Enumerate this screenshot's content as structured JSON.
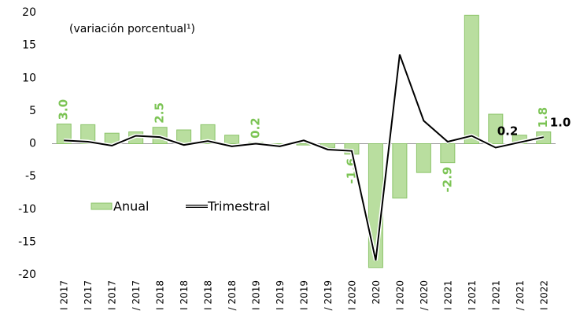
{
  "chart_data": {
    "type": "bar",
    "annotation": "(variación porcentual¹)",
    "categories": [
      "I 2017",
      "I 2017",
      "I 2017",
      "/ 2017",
      "I 2018",
      "I 2018",
      "I 2018",
      "/ 2018",
      "I 2019",
      "I 2019",
      "I 2019",
      "/ 2019",
      "I 2020",
      "2020",
      "I 2020",
      "/ 2020",
      "I 2021",
      "I 2021",
      "I 2021",
      "/ 2021",
      "I 2022"
    ],
    "series": [
      {
        "name": "Anual",
        "type": "bar",
        "color": "#b9de9f",
        "values": [
          3.0,
          2.9,
          1.6,
          1.8,
          2.5,
          2.1,
          2.9,
          1.3,
          0.2,
          0.0,
          -0.2,
          -0.6,
          -1.6,
          -18.9,
          -8.3,
          -4.4,
          -2.9,
          19.6,
          4.5,
          1.3,
          1.8
        ],
        "value_labels": [
          "3.0",
          null,
          null,
          null,
          "2.5",
          null,
          null,
          null,
          "0.2",
          null,
          null,
          null,
          "-1.6",
          null,
          null,
          null,
          "-2.9",
          null,
          null,
          null,
          "1.8"
        ]
      },
      {
        "name": "Trimestral",
        "type": "line",
        "color": "#000000",
        "values": [
          0.5,
          0.3,
          -0.3,
          1.2,
          1.0,
          -0.2,
          0.4,
          -0.4,
          0.0,
          -0.4,
          0.5,
          -0.9,
          -1.1,
          -17.8,
          13.6,
          3.5,
          0.3,
          1.2,
          -0.6,
          0.2,
          1.0
        ],
        "value_labels": [
          null,
          null,
          null,
          null,
          null,
          null,
          null,
          null,
          null,
          null,
          null,
          null,
          null,
          null,
          null,
          null,
          null,
          null,
          null,
          "0.2",
          "1.0"
        ]
      }
    ],
    "ylim": [
      -20,
      20
    ],
    "yticks": [
      -20,
      -15,
      -10,
      -5,
      0,
      5,
      10,
      15,
      20
    ],
    "grid": false
  }
}
